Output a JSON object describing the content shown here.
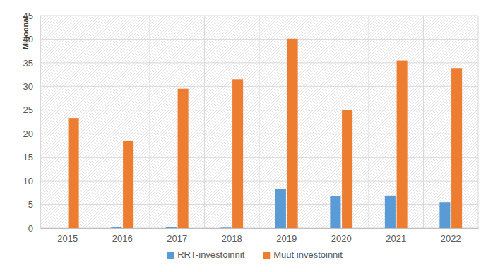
{
  "chart_data": {
    "type": "bar",
    "y_label": "Miljoonat",
    "categories": [
      "2015",
      "2016",
      "2017",
      "2018",
      "2019",
      "2020",
      "2021",
      "2022"
    ],
    "series": [
      {
        "name": "RRT-investoinnit",
        "color": "#5b9bd5",
        "values": [
          0,
          0.2,
          0.2,
          0.1,
          8.3,
          6.8,
          6.9,
          5.5
        ]
      },
      {
        "name": "Muut investoinnit",
        "color": "#ed7d31",
        "values": [
          23.3,
          18.5,
          29.5,
          31.5,
          40.1,
          25.1,
          35.5,
          33.9
        ]
      }
    ],
    "ylim": [
      0,
      45
    ],
    "yticks": [
      0,
      5,
      10,
      15,
      20,
      25,
      30,
      35,
      40,
      45
    ],
    "grid": true,
    "legend": "bottom"
  }
}
